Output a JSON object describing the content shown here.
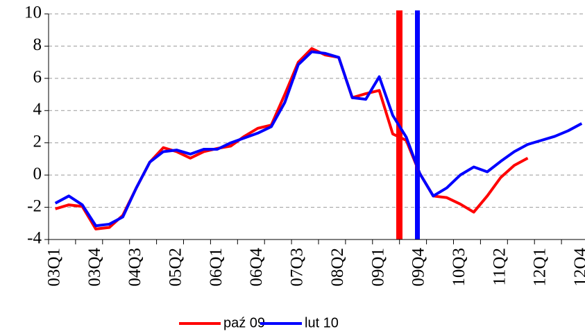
{
  "chart_data": {
    "type": "line",
    "categories": [
      "03Q1",
      null,
      null,
      "03Q4",
      null,
      null,
      "04Q3",
      null,
      null,
      "05Q2",
      null,
      null,
      "06Q1",
      null,
      null,
      "06Q4",
      null,
      null,
      "07Q3",
      null,
      null,
      "08Q2",
      null,
      null,
      "09Q1",
      null,
      null,
      "09Q4",
      null,
      null,
      "10Q3",
      null,
      null,
      "11Q2",
      null,
      null,
      "12Q1",
      null,
      null,
      "12Q4"
    ],
    "series": [
      {
        "name": "paź 09",
        "color": "#ff0000",
        "values": [
          -2.1,
          -1.85,
          -1.95,
          -3.35,
          -3.25,
          -2.5,
          -0.8,
          0.8,
          1.7,
          1.45,
          1.05,
          1.45,
          1.65,
          1.8,
          2.4,
          2.9,
          3.1,
          5.0,
          7.0,
          7.85,
          7.45,
          7.3,
          4.8,
          5.05,
          5.25,
          2.55,
          2.15,
          0.1,
          -1.3,
          -1.4,
          -1.8,
          -2.3,
          -1.3,
          -0.15,
          0.6,
          1.05,
          null,
          null,
          null,
          null
        ]
      },
      {
        "name": "lut 10",
        "color": "#0000ff",
        "values": [
          -1.75,
          -1.3,
          -1.85,
          -3.15,
          -3.05,
          -2.6,
          -0.8,
          0.8,
          1.45,
          1.55,
          1.3,
          1.6,
          1.6,
          2.0,
          2.3,
          2.6,
          3.0,
          4.5,
          6.85,
          7.65,
          7.55,
          7.3,
          4.8,
          4.7,
          6.1,
          3.7,
          2.35,
          0.1,
          -1.3,
          -0.8,
          0.0,
          0.5,
          0.2,
          0.85,
          1.45,
          1.9,
          2.15,
          2.4,
          2.75,
          3.2
        ]
      }
    ],
    "ylim": [
      -4,
      10
    ],
    "yticks": [
      -4,
      -2,
      0,
      2,
      4,
      6,
      8,
      10
    ],
    "grid": true
  }
}
